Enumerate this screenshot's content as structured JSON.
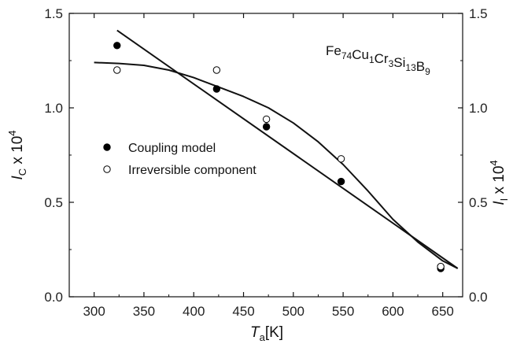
{
  "chart_data": {
    "type": "scatter",
    "title": "",
    "annotation": {
      "base": [
        "Fe",
        "Cu",
        "Cr",
        "Si",
        "B"
      ],
      "subs": [
        "74",
        "1",
        "3",
        "13",
        "9"
      ]
    },
    "xlabel": {
      "italic": "T",
      "sub": "a",
      "rest": "[K]"
    },
    "ylabel_left": {
      "italic": "I",
      "sub": "C",
      "rest": " x 10",
      "sup": "4"
    },
    "ylabel_right": {
      "italic": "I",
      "sub": "I",
      "rest": " x 10",
      "sup": "4"
    },
    "xlim": [
      275,
      670
    ],
    "ylim": [
      0,
      1.5
    ],
    "x_ticks": [
      300,
      350,
      400,
      450,
      500,
      550,
      600,
      650
    ],
    "y_ticks": [
      "0.0",
      "0.5",
      "1.0",
      "1.5"
    ],
    "legend": {
      "position": "center-left",
      "entries": [
        "Coupling model",
        "Irreversible component"
      ]
    },
    "series": [
      {
        "name": "Coupling model",
        "marker": "filled-circle",
        "x": [
          323,
          423,
          473,
          548,
          648
        ],
        "y": [
          1.33,
          1.1,
          0.9,
          0.61,
          0.15
        ]
      },
      {
        "name": "Irreversible component",
        "marker": "open-circle",
        "x": [
          323,
          423,
          473,
          548,
          648
        ],
        "y": [
          1.2,
          1.2,
          0.94,
          0.73,
          0.16
        ]
      }
    ],
    "fit_lines": [
      {
        "shape": "straight",
        "x": [
          323,
          665
        ],
        "y": [
          1.41,
          0.15
        ]
      },
      {
        "shape": "curve",
        "x": [
          300,
          325,
          350,
          375,
          400,
          425,
          450,
          475,
          500,
          525,
          550,
          575,
          600,
          625,
          650,
          665
        ],
        "y": [
          1.24,
          1.235,
          1.225,
          1.2,
          1.16,
          1.11,
          1.06,
          1.0,
          0.92,
          0.82,
          0.7,
          0.56,
          0.41,
          0.29,
          0.19,
          0.15
        ]
      }
    ]
  }
}
